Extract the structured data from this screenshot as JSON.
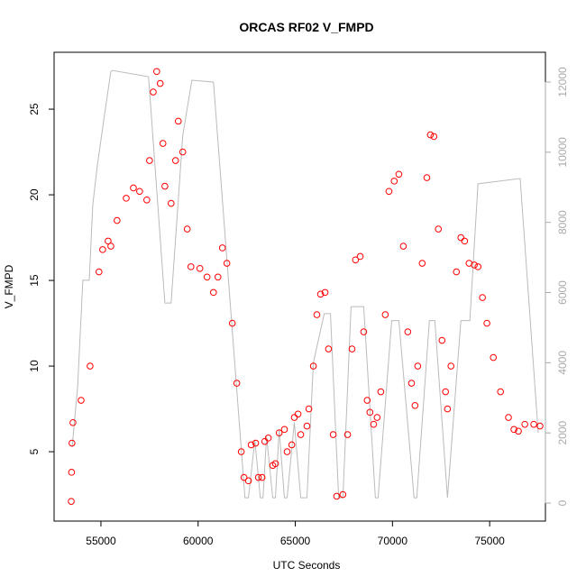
{
  "chart_data": {
    "type": "scatter",
    "title": "ORCAS RF02 V_FMPD",
    "x_label": "UTC Seconds",
    "y_label": "V_FMPD",
    "xlim": [
      52590,
      77870
    ],
    "xticks": [
      55000,
      60000,
      65000,
      70000,
      75000
    ],
    "ylim": [
      0.95,
      28.32
    ],
    "yticks": [
      5,
      10,
      15,
      20,
      25
    ],
    "y2lim": [
      -514,
      12848
    ],
    "y2ticks": [
      0,
      2000,
      4000,
      6000,
      8000,
      10000,
      12000
    ],
    "y2color": "#aaaaaa",
    "series": [
      {
        "type": "line",
        "axis": "y2",
        "color": "#bbbbbb",
        "x": [
          53520,
          53800,
          54070,
          54400,
          54580,
          54810,
          55140,
          55510,
          55600,
          57450,
          57500,
          58290,
          58610,
          59210,
          59680,
          60790,
          62410,
          62590,
          62920,
          63200,
          63340,
          63520,
          63840,
          63980,
          64170,
          64440,
          64580,
          64950,
          65280,
          65600,
          65930,
          66490,
          66810,
          67230,
          67450,
          67870,
          68520,
          69120,
          69260,
          69960,
          70330,
          71110,
          71250,
          71900,
          72180,
          72830,
          73520,
          73980,
          74400,
          76570,
          77500
        ],
        "values": [
          1600,
          3300,
          6350,
          6350,
          8500,
          9600,
          10900,
          12300,
          12330,
          12150,
          11770,
          5700,
          5700,
          10480,
          12050,
          12000,
          150,
          150,
          1800,
          150,
          150,
          1900,
          150,
          150,
          2100,
          150,
          150,
          2300,
          150,
          150,
          4000,
          5400,
          5400,
          150,
          150,
          5600,
          5600,
          150,
          150,
          5200,
          5200,
          150,
          150,
          5200,
          5200,
          150,
          5200,
          5200,
          9100,
          9250,
          2000
        ]
      },
      {
        "type": "points",
        "color": "#ff0000",
        "x": [
          53472,
          53490,
          53510,
          53560,
          53980,
          54440,
          54900,
          55090,
          55370,
          55510,
          55830,
          56300,
          56670,
          56990,
          57360,
          57500,
          57690,
          57870,
          58050,
          58190,
          58290,
          58610,
          58840,
          58980,
          59210,
          59440,
          59630,
          60090,
          60460,
          60790,
          61020,
          61250,
          61480,
          61760,
          61990,
          62220,
          62360,
          62590,
          62730,
          62960,
          63100,
          63290,
          63430,
          63610,
          63840,
          63980,
          64170,
          64440,
          64580,
          64820,
          64950,
          65140,
          65280,
          65600,
          65700,
          65930,
          66110,
          66300,
          66530,
          66710,
          66950,
          67130,
          67450,
          67690,
          67920,
          68100,
          68340,
          68520,
          68700,
          68840,
          69030,
          69210,
          69400,
          69630,
          69820,
          70090,
          70330,
          70560,
          70790,
          70980,
          71160,
          71300,
          71530,
          71770,
          71950,
          72130,
          72360,
          72550,
          72730,
          72830,
          73010,
          73290,
          73520,
          73710,
          73940,
          74210,
          74400,
          74630,
          74860,
          75190,
          75560,
          75970,
          76250,
          76480,
          76810,
          77270,
          77590
        ],
        "values": [
          2.1,
          3.8,
          5.5,
          6.7,
          8,
          10,
          15.5,
          16.8,
          17.3,
          17,
          18.5,
          19.8,
          20.4,
          20.2,
          19.7,
          22,
          26,
          27.2,
          26.5,
          23,
          20.5,
          19.5,
          22,
          24.3,
          22.5,
          18,
          15.8,
          15.7,
          15.2,
          14.3,
          15.2,
          16.9,
          16,
          12.5,
          9,
          5,
          3.5,
          3.3,
          5.4,
          5.5,
          3.5,
          3.5,
          5.6,
          5.8,
          4.2,
          4.3,
          6.1,
          6.3,
          5,
          5.4,
          7,
          7.2,
          6,
          6.5,
          7.5,
          10,
          13,
          14.2,
          14.3,
          11,
          6,
          2.4,
          2.5,
          6,
          11,
          16.2,
          16.4,
          12,
          8,
          7.3,
          6.6,
          7,
          8.5,
          13,
          20.2,
          20.8,
          21.2,
          17,
          12,
          9,
          7.7,
          10,
          16,
          21,
          23.5,
          23.4,
          18,
          11.5,
          8.5,
          7.5,
          10,
          15.5,
          17.5,
          17.3,
          16,
          15.9,
          15.8,
          14,
          12.5,
          10.5,
          8.5,
          7,
          6.3,
          6.2,
          6.6,
          6.6,
          6.5
        ]
      }
    ]
  }
}
